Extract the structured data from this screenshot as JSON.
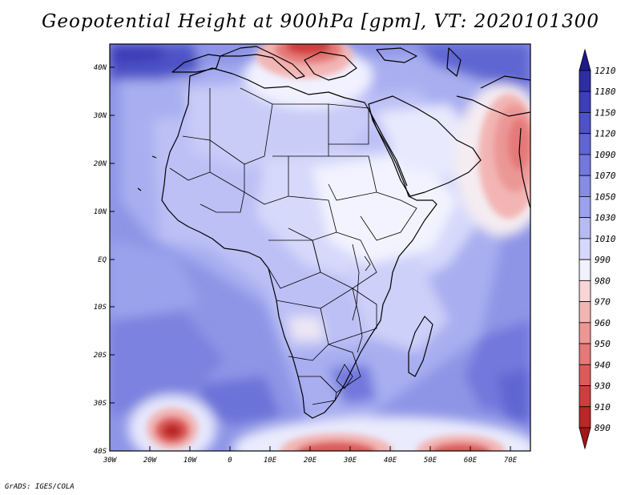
{
  "title": "Geopotential Height at 900hPa [gpm], VT: 2020101300",
  "credit": "GrADS: IGES/COLA",
  "map": {
    "variable": "Geopotential Height",
    "level": "900hPa",
    "units": "gpm",
    "valid_time": "2020101300",
    "lon_range": [
      -30,
      75
    ],
    "lat_range": [
      -40,
      45
    ],
    "lon_ticks": [
      "30W",
      "20W",
      "10W",
      "0",
      "10E",
      "20E",
      "30E",
      "40E",
      "50E",
      "60E",
      "70E"
    ],
    "lat_ticks": [
      "40N",
      "30N",
      "20N",
      "10N",
      "EQ",
      "10S",
      "20S",
      "30S",
      "40S"
    ]
  },
  "colorbar": {
    "levels": [
      "1210",
      "1180",
      "1150",
      "1120",
      "1090",
      "1070",
      "1050",
      "1030",
      "1010",
      "990",
      "980",
      "970",
      "960",
      "950",
      "940",
      "930",
      "910",
      "890"
    ],
    "colors": [
      "#1e1a8c",
      "#2d2ea3",
      "#3d3eb8",
      "#4e52c6",
      "#5f66d2",
      "#7278dc",
      "#868ce4",
      "#9ba2ec",
      "#b6bcf3",
      "#d4d8fa",
      "#f1f1ff",
      "#f8d6d6",
      "#f2b5b4",
      "#eb9796",
      "#e47978",
      "#dc5b5a",
      "#cf3e3e",
      "#bb2626",
      "#a31616"
    ],
    "top_arrow_color": "#1e1a8c",
    "bottom_arrow_color": "#a31616"
  }
}
